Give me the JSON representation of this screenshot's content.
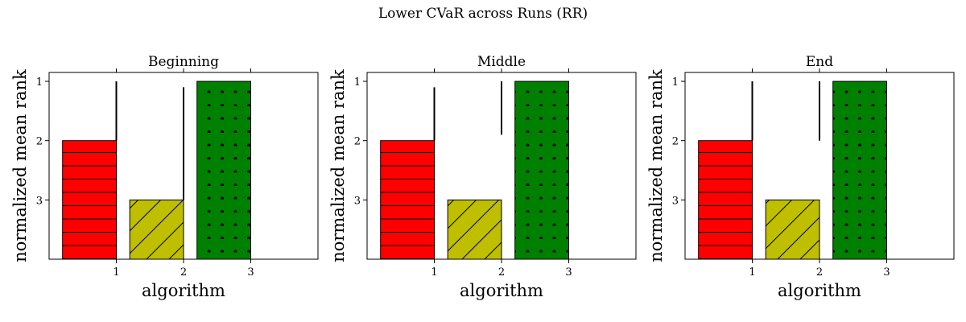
{
  "figure_title": "Lower CVaR across Runs (RR)",
  "chart_data": [
    {
      "type": "bar",
      "title": "Beginning",
      "xlabel": "algorithm",
      "ylabel": "normalized mean rank",
      "x_ticks": [
        "1",
        "2",
        "3"
      ],
      "y_ticks": [
        "1",
        "2",
        "3"
      ],
      "ylim": [
        4,
        0.85
      ],
      "xlim": [
        0,
        4
      ],
      "y_inverted": true,
      "bars": [
        {
          "x": 1,
          "value": 2,
          "color": "#ff0000",
          "hatch": "horizontal-lines"
        },
        {
          "x": 2,
          "value": 3,
          "color": "#bfbf00",
          "hatch": "diagonal-lines"
        },
        {
          "x": 3,
          "value": 1,
          "color": "#008000",
          "hatch": "dots"
        }
      ],
      "vlines": [
        {
          "x": 1,
          "y_from": 1,
          "y_to": 2
        },
        {
          "x": 2,
          "y_from": 1.1,
          "y_to": 3
        }
      ]
    },
    {
      "type": "bar",
      "title": "Middle",
      "xlabel": "algorithm",
      "ylabel": "normalized mean rank",
      "x_ticks": [
        "1",
        "2",
        "3"
      ],
      "y_ticks": [
        "1",
        "2",
        "3"
      ],
      "ylim": [
        4,
        0.85
      ],
      "xlim": [
        0,
        4
      ],
      "y_inverted": true,
      "bars": [
        {
          "x": 1,
          "value": 2,
          "color": "#ff0000",
          "hatch": "horizontal-lines"
        },
        {
          "x": 2,
          "value": 3,
          "color": "#bfbf00",
          "hatch": "diagonal-lines"
        },
        {
          "x": 3,
          "value": 1,
          "color": "#008000",
          "hatch": "dots"
        }
      ],
      "vlines": [
        {
          "x": 1,
          "y_from": 1.1,
          "y_to": 2
        },
        {
          "x": 2,
          "y_from": 1,
          "y_to": 1.9
        }
      ]
    },
    {
      "type": "bar",
      "title": "End",
      "xlabel": "algorithm",
      "ylabel": "normalized mean rank",
      "x_ticks": [
        "1",
        "2",
        "3"
      ],
      "y_ticks": [
        "1",
        "2",
        "3"
      ],
      "ylim": [
        4,
        0.85
      ],
      "xlim": [
        0,
        4
      ],
      "y_inverted": true,
      "bars": [
        {
          "x": 1,
          "value": 2,
          "color": "#ff0000",
          "hatch": "horizontal-lines"
        },
        {
          "x": 2,
          "value": 3,
          "color": "#bfbf00",
          "hatch": "diagonal-lines"
        },
        {
          "x": 3,
          "value": 1,
          "color": "#008000",
          "hatch": "dots"
        }
      ],
      "vlines": [
        {
          "x": 1,
          "y_from": 1,
          "y_to": 2
        },
        {
          "x": 2,
          "y_from": 1,
          "y_to": 2
        }
      ]
    }
  ]
}
